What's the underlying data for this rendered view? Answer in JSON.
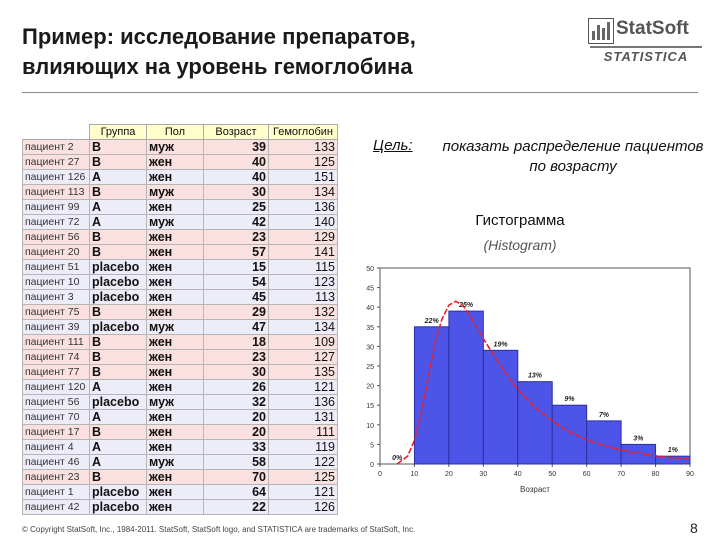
{
  "slide": {
    "title_line1": "Пример: исследование препаратов,",
    "title_line2": "влияющих на уровень гемоглобина",
    "goal_label": "Цель:",
    "goal_text": "показать распределение пациентов по возрасту",
    "histogram_title": "Гистограмма",
    "histogram_subtitle": "(Histogram)",
    "footer": "© Copyright StatSoft, Inc., 1984-2011. StatSoft, StatSoft logo, and STATISTICA are trademarks of StatSoft, Inc.",
    "page_number": "8"
  },
  "logo": {
    "name": "StatSoft",
    "sub": "STATISTICA",
    "icon": "statsoft-logo-icon"
  },
  "table": {
    "headers": [
      "Группа",
      "Пол",
      "Возраст",
      "Гемоглобин"
    ],
    "rows": [
      {
        "id": "пациент 2",
        "group": "B",
        "sex": "муж",
        "age": "39",
        "hgb": "133",
        "tone": "pink"
      },
      {
        "id": "пациент 27",
        "group": "B",
        "sex": "жен",
        "age": "40",
        "hgb": "125",
        "tone": "pink"
      },
      {
        "id": "пациент 126",
        "group": "A",
        "sex": "жен",
        "age": "40",
        "hgb": "151",
        "tone": "blue"
      },
      {
        "id": "пациент 113",
        "group": "B",
        "sex": "муж",
        "age": "30",
        "hgb": "134",
        "tone": "pink"
      },
      {
        "id": "пациент 99",
        "group": "A",
        "sex": "жен",
        "age": "25",
        "hgb": "136",
        "tone": "blue"
      },
      {
        "id": "пациент 72",
        "group": "A",
        "sex": "муж",
        "age": "42",
        "hgb": "140",
        "tone": "blue"
      },
      {
        "id": "пациент 56",
        "group": "B",
        "sex": "жен",
        "age": "23",
        "hgb": "129",
        "tone": "pink"
      },
      {
        "id": "пациент 20",
        "group": "B",
        "sex": "жен",
        "age": "57",
        "hgb": "141",
        "tone": "pink"
      },
      {
        "id": "пациент 51",
        "group": "placebo",
        "sex": "жен",
        "age": "15",
        "hgb": "115",
        "tone": "blue"
      },
      {
        "id": "пациент 10",
        "group": "placebo",
        "sex": "жен",
        "age": "54",
        "hgb": "123",
        "tone": "blue"
      },
      {
        "id": "пациент 3",
        "group": "placebo",
        "sex": "жен",
        "age": "45",
        "hgb": "113",
        "tone": "blue"
      },
      {
        "id": "пациент 75",
        "group": "B",
        "sex": "жен",
        "age": "29",
        "hgb": "132",
        "tone": "pink"
      },
      {
        "id": "пациент 39",
        "group": "placebo",
        "sex": "муж",
        "age": "47",
        "hgb": "134",
        "tone": "blue"
      },
      {
        "id": "пациент 111",
        "group": "B",
        "sex": "жен",
        "age": "18",
        "hgb": "109",
        "tone": "pink"
      },
      {
        "id": "пациент 74",
        "group": "B",
        "sex": "жен",
        "age": "23",
        "hgb": "127",
        "tone": "pink"
      },
      {
        "id": "пациент 77",
        "group": "B",
        "sex": "жен",
        "age": "30",
        "hgb": "135",
        "tone": "pink"
      },
      {
        "id": "пациент 120",
        "group": "A",
        "sex": "жен",
        "age": "26",
        "hgb": "121",
        "tone": "blue"
      },
      {
        "id": "пациент 56",
        "group": "placebo",
        "sex": "муж",
        "age": "32",
        "hgb": "136",
        "tone": "blue"
      },
      {
        "id": "пациент 70",
        "group": "A",
        "sex": "жен",
        "age": "20",
        "hgb": "131",
        "tone": "blue"
      },
      {
        "id": "пациент 17",
        "group": "B",
        "sex": "жен",
        "age": "20",
        "hgb": "111",
        "tone": "pink"
      },
      {
        "id": "пациент 4",
        "group": "A",
        "sex": "жен",
        "age": "33",
        "hgb": "119",
        "tone": "blue"
      },
      {
        "id": "пациент 46",
        "group": "A",
        "sex": "муж",
        "age": "58",
        "hgb": "122",
        "tone": "blue"
      },
      {
        "id": "пациент 23",
        "group": "B",
        "sex": "жен",
        "age": "70",
        "hgb": "125",
        "tone": "pink"
      },
      {
        "id": "пациент 1",
        "group": "placebo",
        "sex": "жен",
        "age": "64",
        "hgb": "121",
        "tone": "blue"
      },
      {
        "id": "пациент 42",
        "group": "placebo",
        "sex": "жен",
        "age": "22",
        "hgb": "126",
        "tone": "blue"
      }
    ]
  },
  "chart_data": {
    "type": "bar",
    "xlabel": "Возраст",
    "ylabel": "",
    "xlim": [
      0,
      90
    ],
    "ylim": [
      0,
      50
    ],
    "xticks": [
      0,
      10,
      20,
      30,
      40,
      50,
      60,
      70,
      80,
      90
    ],
    "yticks": [
      0,
      5,
      10,
      15,
      20,
      25,
      30,
      35,
      40,
      45,
      50
    ],
    "bins": [
      {
        "from": 10,
        "to": 20,
        "value": 35,
        "label": "22%"
      },
      {
        "from": 20,
        "to": 30,
        "value": 39,
        "label": "25%"
      },
      {
        "from": 30,
        "to": 40,
        "value": 29,
        "label": "19%"
      },
      {
        "from": 40,
        "to": 50,
        "value": 21,
        "label": "13%"
      },
      {
        "from": 50,
        "to": 60,
        "value": 15,
        "label": "9%"
      },
      {
        "from": 60,
        "to": 70,
        "value": 11,
        "label": "7%"
      },
      {
        "from": 70,
        "to": 80,
        "value": 5,
        "label": "3%"
      },
      {
        "from": 80,
        "to": 90,
        "value": 2,
        "label": "1%"
      }
    ],
    "zero_bin_label": "0%",
    "curve": {
      "x": [
        5,
        8,
        10,
        12,
        14,
        16,
        18,
        20,
        22,
        24,
        26,
        30,
        35,
        40,
        45,
        50,
        55,
        60,
        65,
        70,
        75,
        80,
        85,
        90
      ],
      "y": [
        0,
        2,
        6,
        13,
        22,
        31,
        37,
        40.5,
        41.5,
        40.5,
        38,
        32,
        25,
        19,
        14.5,
        11,
        8.2,
        6.2,
        4.7,
        3.6,
        2.8,
        2.1,
        1.6,
        1.3
      ]
    },
    "grid": false,
    "colors": {
      "bar": "#4d55e8",
      "bar_edge": "#2a2fa0",
      "curve": "#e8202a"
    }
  }
}
